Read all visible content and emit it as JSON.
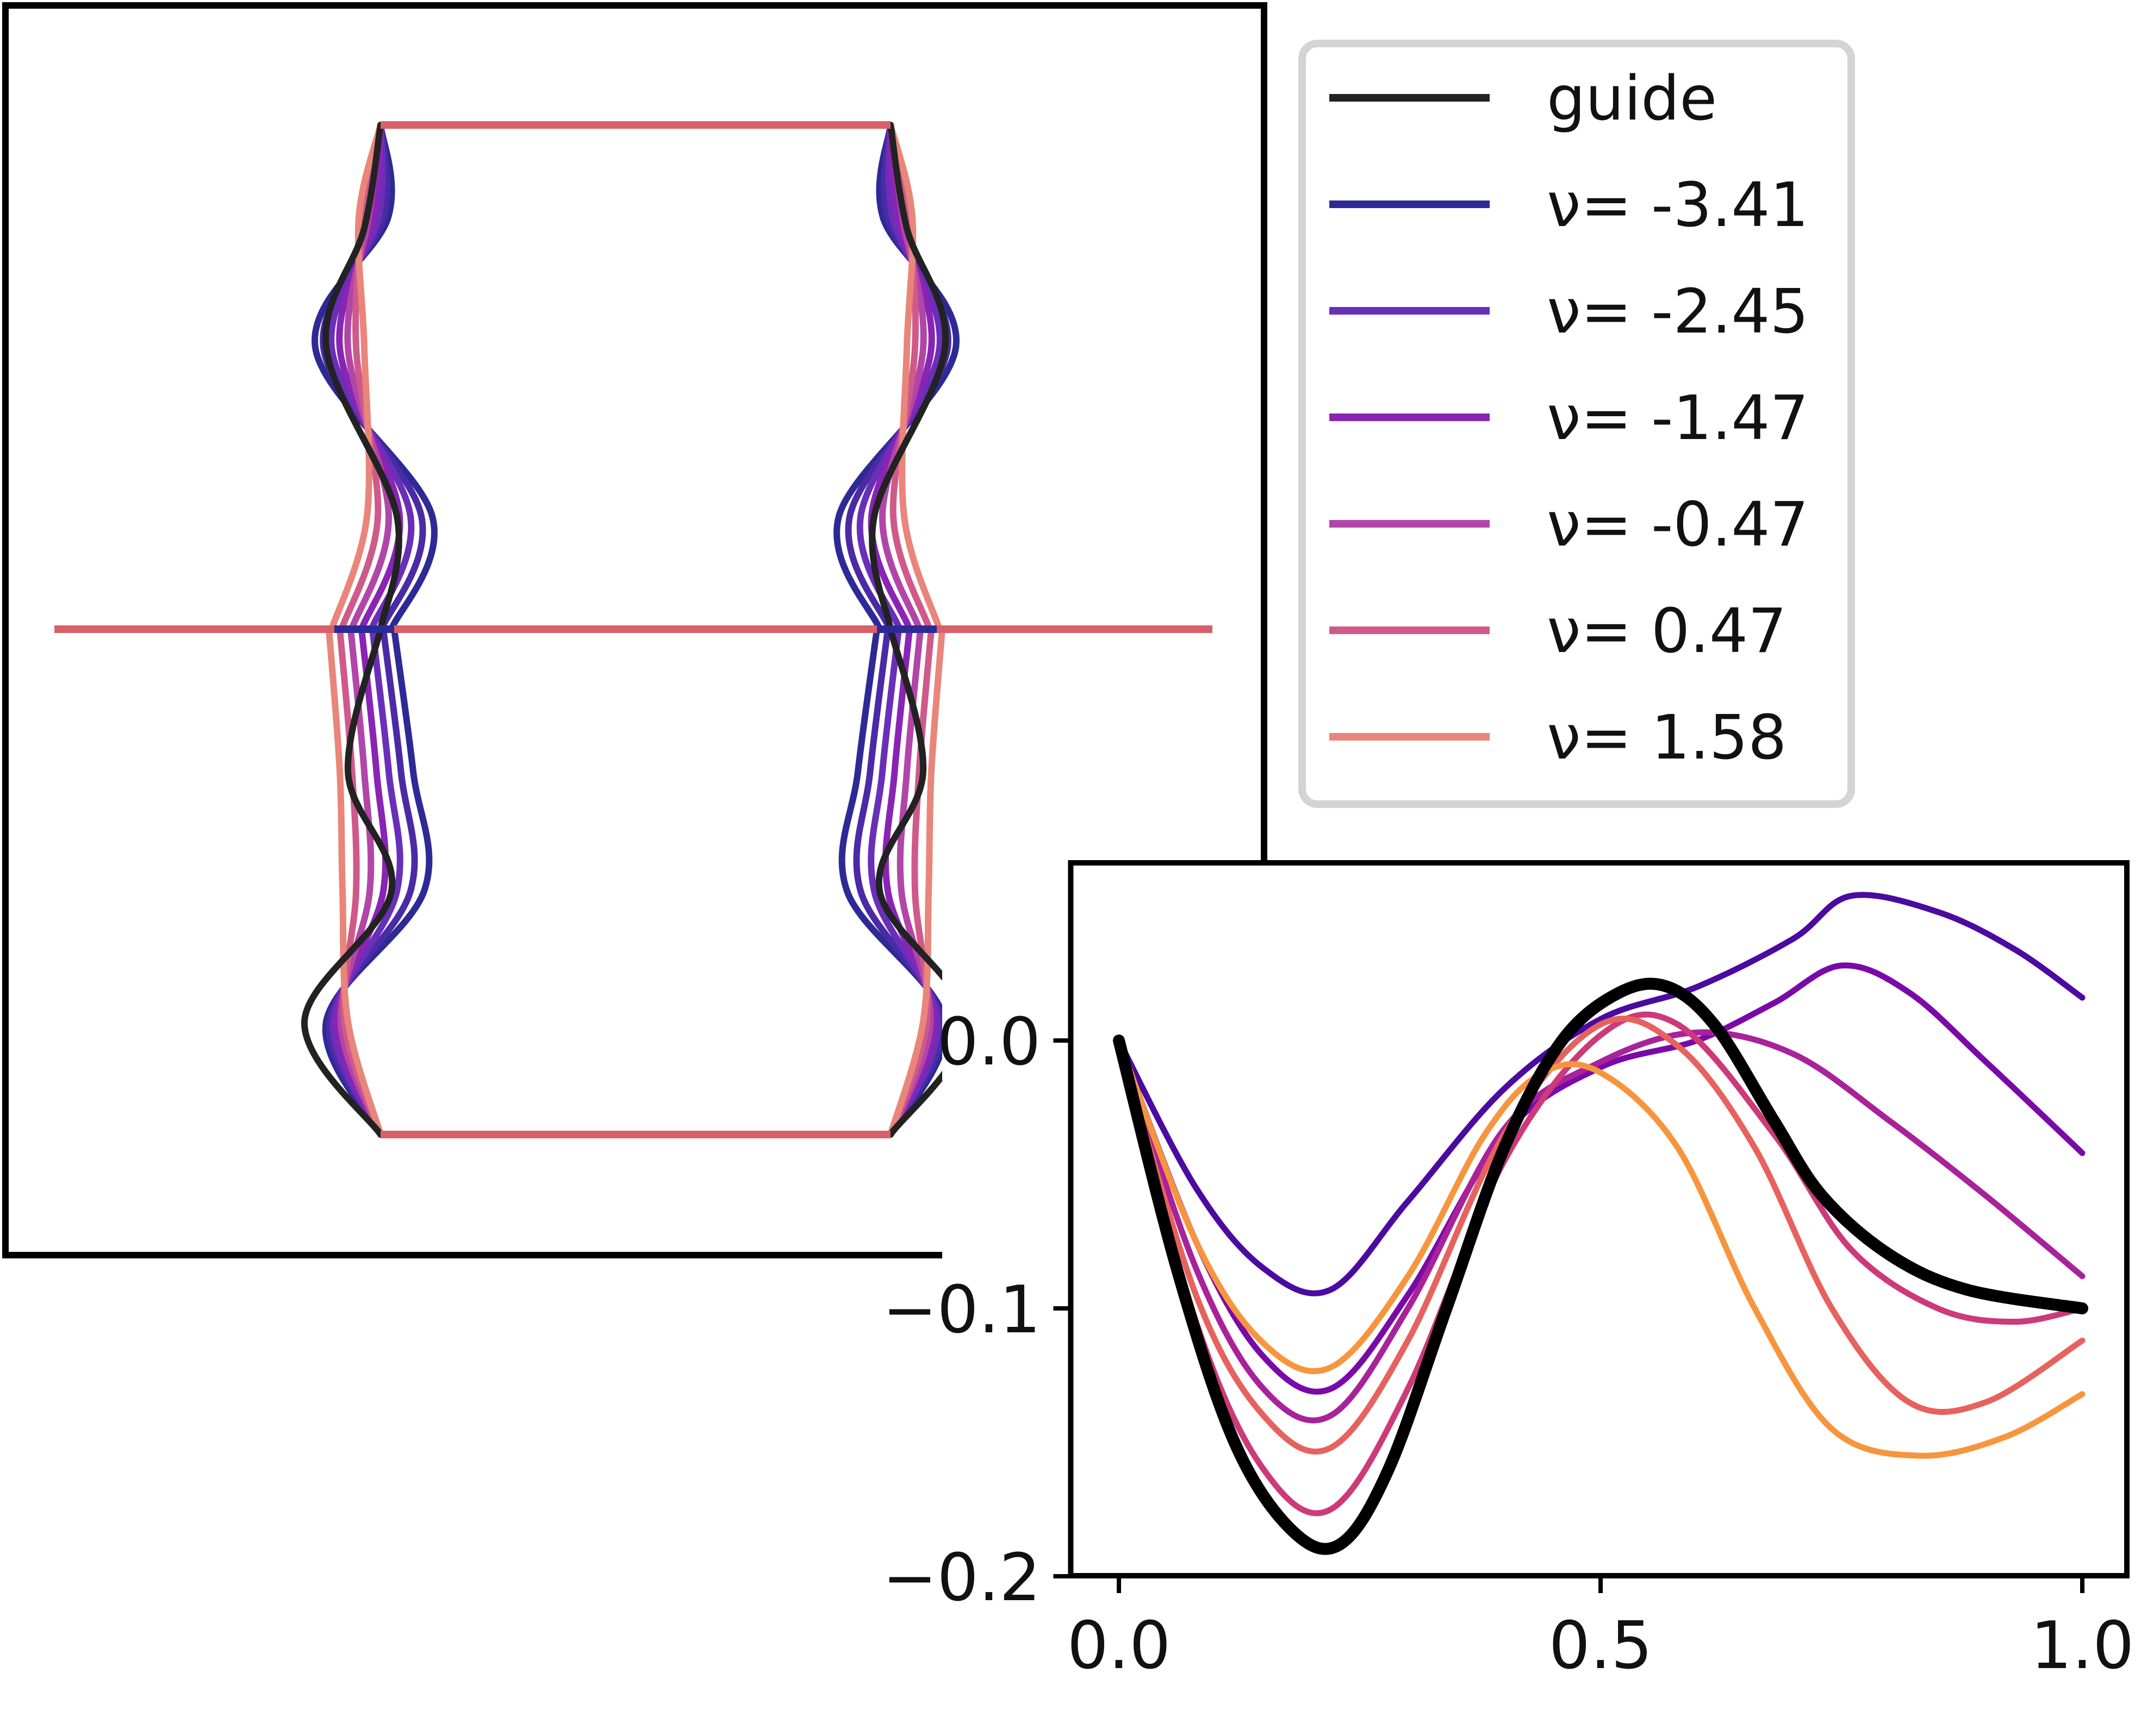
{
  "colors": {
    "guide": "#222222",
    "legend_border": "#d4d4d4",
    "panel_frame": "#000000"
  },
  "legend": {
    "entries": [
      {
        "label": "guide",
        "color": "#222222"
      },
      {
        "label": "ν= -3.41",
        "color": "#2d2a96"
      },
      {
        "label": "ν= -2.45",
        "color": "#6a2fb8"
      },
      {
        "label": "ν= -1.47",
        "color": "#8a24b4"
      },
      {
        "label": "ν= -0.47",
        "color": "#b146a8"
      },
      {
        "label": "ν= 0.47",
        "color": "#cf5a8a"
      },
      {
        "label": "ν= 1.58",
        "color": "#e9857a"
      }
    ]
  },
  "shape_panel": {
    "guide_color": "#222222",
    "top_color": "#d9606a",
    "outline_colors": [
      "#2d2a96",
      "#4b2aa6",
      "#6a2fb8",
      "#8a24b4",
      "#b146a8",
      "#cf5a8a",
      "#e9857a"
    ]
  },
  "chart_data": {
    "type": "line",
    "xlim": [
      -0.05,
      1.05
    ],
    "ylim": [
      -0.2,
      0.06
    ],
    "xticks": [
      0.0,
      0.5,
      1.0
    ],
    "xtick_labels": [
      "0.0",
      "0.5",
      "1.0"
    ],
    "yticks": [
      0.0,
      -0.1,
      -0.2
    ],
    "ytick_labels": [
      "0.0",
      "−0.1",
      "−0.2"
    ],
    "grid": false,
    "series": [
      {
        "color": "#4b0aa0",
        "width": 11,
        "points": [
          [
            0.0,
            0.0
          ],
          [
            0.08,
            -0.055
          ],
          [
            0.15,
            -0.085
          ],
          [
            0.22,
            -0.093
          ],
          [
            0.3,
            -0.06
          ],
          [
            0.4,
            -0.018
          ],
          [
            0.5,
            0.008
          ],
          [
            0.6,
            0.02
          ],
          [
            0.7,
            0.038
          ],
          [
            0.76,
            0.054
          ],
          [
            0.85,
            0.048
          ],
          [
            0.93,
            0.034
          ],
          [
            1.0,
            0.016
          ]
        ]
      },
      {
        "color": "#7a0aa8",
        "width": 11,
        "points": [
          [
            0.0,
            0.0
          ],
          [
            0.08,
            -0.075
          ],
          [
            0.15,
            -0.118
          ],
          [
            0.22,
            -0.13
          ],
          [
            0.3,
            -0.095
          ],
          [
            0.4,
            -0.035
          ],
          [
            0.5,
            -0.01
          ],
          [
            0.6,
            0.0
          ],
          [
            0.68,
            0.014
          ],
          [
            0.75,
            0.028
          ],
          [
            0.82,
            0.018
          ],
          [
            0.9,
            -0.008
          ],
          [
            1.0,
            -0.042
          ]
        ]
      },
      {
        "color": "#a8229a",
        "width": 11,
        "points": [
          [
            0.0,
            0.0
          ],
          [
            0.08,
            -0.085
          ],
          [
            0.15,
            -0.13
          ],
          [
            0.22,
            -0.14
          ],
          [
            0.3,
            -0.1
          ],
          [
            0.4,
            -0.033
          ],
          [
            0.5,
            -0.008
          ],
          [
            0.6,
            0.003
          ],
          [
            0.7,
            -0.005
          ],
          [
            0.8,
            -0.03
          ],
          [
            0.9,
            -0.058
          ],
          [
            1.0,
            -0.088
          ]
        ]
      },
      {
        "color": "#cc3a7a",
        "width": 11,
        "points": [
          [
            0.0,
            0.0
          ],
          [
            0.08,
            -0.105
          ],
          [
            0.15,
            -0.16
          ],
          [
            0.22,
            -0.175
          ],
          [
            0.3,
            -0.13
          ],
          [
            0.4,
            -0.045
          ],
          [
            0.5,
            0.002
          ],
          [
            0.58,
            0.006
          ],
          [
            0.68,
            -0.035
          ],
          [
            0.76,
            -0.078
          ],
          [
            0.85,
            -0.1
          ],
          [
            0.93,
            -0.105
          ],
          [
            1.0,
            -0.1
          ]
        ]
      },
      {
        "color": "#e6625e",
        "width": 11,
        "points": [
          [
            0.0,
            0.0
          ],
          [
            0.08,
            -0.095
          ],
          [
            0.15,
            -0.14
          ],
          [
            0.22,
            -0.152
          ],
          [
            0.3,
            -0.112
          ],
          [
            0.4,
            -0.035
          ],
          [
            0.5,
            0.006
          ],
          [
            0.58,
            -0.002
          ],
          [
            0.66,
            -0.04
          ],
          [
            0.74,
            -0.1
          ],
          [
            0.82,
            -0.135
          ],
          [
            0.9,
            -0.135
          ],
          [
            1.0,
            -0.112
          ]
        ]
      },
      {
        "color": "#f7953e",
        "width": 11,
        "points": [
          [
            0.0,
            0.0
          ],
          [
            0.08,
            -0.075
          ],
          [
            0.15,
            -0.113
          ],
          [
            0.22,
            -0.122
          ],
          [
            0.3,
            -0.088
          ],
          [
            0.38,
            -0.035
          ],
          [
            0.44,
            -0.012
          ],
          [
            0.5,
            -0.012
          ],
          [
            0.58,
            -0.04
          ],
          [
            0.66,
            -0.1
          ],
          [
            0.74,
            -0.145
          ],
          [
            0.83,
            -0.155
          ],
          [
            0.92,
            -0.148
          ],
          [
            1.0,
            -0.132
          ]
        ]
      },
      {
        "color": "#000000",
        "width": 22,
        "points": [
          [
            0.0,
            0.0
          ],
          [
            0.06,
            -0.085
          ],
          [
            0.12,
            -0.15
          ],
          [
            0.18,
            -0.183
          ],
          [
            0.23,
            -0.188
          ],
          [
            0.28,
            -0.16
          ],
          [
            0.34,
            -0.1
          ],
          [
            0.4,
            -0.04
          ],
          [
            0.46,
            0.0
          ],
          [
            0.52,
            0.018
          ],
          [
            0.57,
            0.02
          ],
          [
            0.62,
            0.005
          ],
          [
            0.68,
            -0.03
          ],
          [
            0.73,
            -0.058
          ],
          [
            0.8,
            -0.08
          ],
          [
            0.88,
            -0.093
          ],
          [
            1.0,
            -0.1
          ]
        ]
      }
    ]
  }
}
